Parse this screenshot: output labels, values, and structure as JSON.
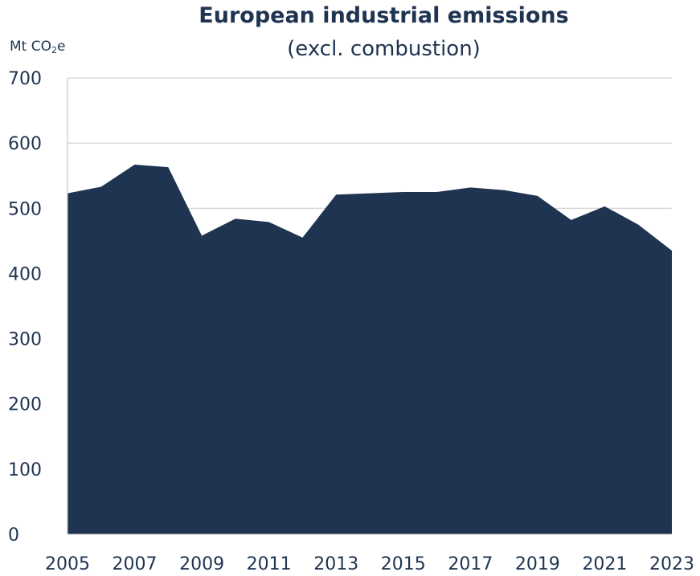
{
  "chart_data": {
    "type": "area",
    "title": "European industrial emissions",
    "subtitle": "(excl. combustion)",
    "unit": {
      "prefix": "Mt CO",
      "subscript": "2",
      "suffix": "e"
    },
    "xlabel": "",
    "ylabel": "",
    "x": [
      2005,
      2006,
      2007,
      2008,
      2009,
      2010,
      2011,
      2012,
      2013,
      2014,
      2015,
      2016,
      2017,
      2018,
      2019,
      2020,
      2021,
      2022,
      2023
    ],
    "series": [
      {
        "values": [
          523,
          533,
          567,
          563,
          458,
          484,
          479,
          455,
          521,
          523,
          525,
          525,
          532,
          528,
          519,
          482,
          503,
          475,
          435
        ],
        "color": "#1f3451"
      }
    ],
    "ylim": [
      0,
      700
    ],
    "yticks": [
      0,
      100,
      200,
      300,
      400,
      500,
      600,
      700
    ],
    "xticks": [
      2005,
      2007,
      2009,
      2011,
      2013,
      2015,
      2017,
      2019,
      2021,
      2023
    ],
    "grid": "horizontal",
    "legend": "none"
  }
}
